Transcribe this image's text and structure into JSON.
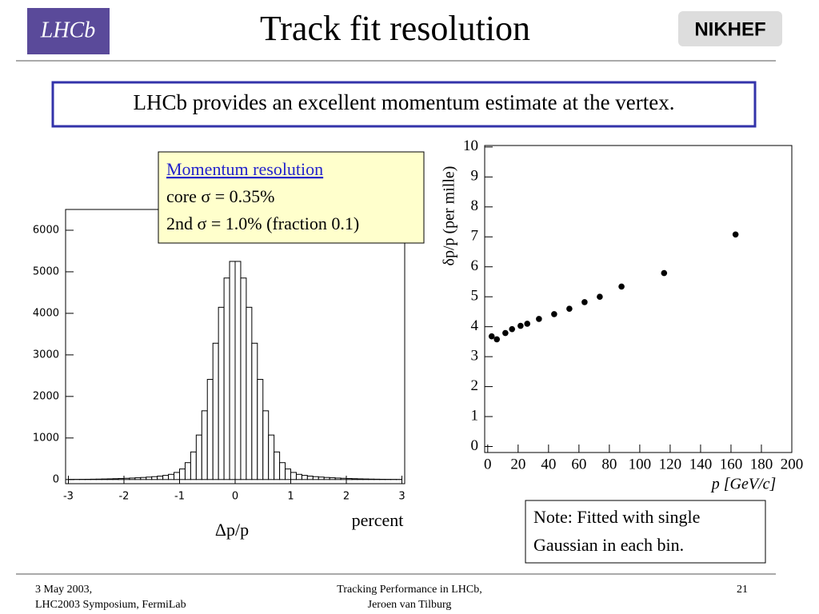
{
  "logos": {
    "left": "LHCb",
    "right": "NIKHEF"
  },
  "header": {
    "title": "Track fit resolution"
  },
  "callout": "LHCb provides an excellent momentum estimate at the vertex.",
  "annotation": {
    "heading": "Momentum resolution",
    "lines": [
      "core σ = 0.35%",
      "2nd σ = 1.0% (fraction 0.1)"
    ]
  },
  "note": [
    "Note: Fitted with single",
    "Gaussian in each bin."
  ],
  "footer": {
    "left": [
      "3 May 2003,",
      "LHC2003 Symposium, FermiLab"
    ],
    "center": [
      "Tracking Performance in LHCb,",
      "Jeroen van Tilburg"
    ],
    "page": "21"
  },
  "chart_data": [
    {
      "type": "histogram",
      "xlabel": "Δp/p",
      "xunit": "percent",
      "bins": [
        -3,
        -2.9,
        -2.8,
        -2.7,
        -2.6,
        -2.5,
        -2.4,
        -2.3,
        -2.2,
        -2.1,
        -2,
        -1.9,
        -1.8,
        -1.7,
        -1.6,
        -1.5,
        -1.4,
        -1.3,
        -1.2,
        -1.1,
        -1,
        -0.9,
        -0.8,
        -0.7,
        -0.6,
        -0.5,
        -0.4,
        -0.3,
        -0.2,
        -0.1,
        0,
        0.1,
        0.2,
        0.3,
        0.4,
        0.5,
        0.6,
        0.7,
        0.8,
        0.9,
        1,
        1.1,
        1.2,
        1.3,
        1.4,
        1.5,
        1.6,
        1.7,
        1.8,
        1.9,
        2,
        2.1,
        2.2,
        2.3,
        2.4,
        2.5,
        2.6,
        2.7,
        2.8,
        2.9,
        3
      ],
      "values": [
        3,
        4,
        5,
        6,
        8,
        10,
        13,
        16,
        20,
        24,
        30,
        36,
        43,
        50,
        59,
        69,
        82,
        100,
        125,
        171,
        254,
        406,
        664,
        1071,
        1654,
        2410,
        3281,
        4146,
        4850,
        5250,
        5250,
        4850,
        4146,
        3281,
        2410,
        1654,
        1071,
        664,
        406,
        254,
        171,
        125,
        100,
        82,
        69,
        59,
        50,
        43,
        36,
        30,
        24,
        20,
        16,
        13,
        10,
        8,
        6,
        5,
        4,
        3
      ],
      "color": "#000000",
      "xlim": [
        -3.05,
        3.05
      ],
      "ylim": [
        -100,
        6500
      ],
      "xticks": [
        -3,
        -2,
        -1,
        0,
        1,
        2,
        3
      ],
      "yticks": [
        0,
        1000,
        2000,
        3000,
        4000,
        5000,
        6000
      ]
    },
    {
      "type": "scatter",
      "xlabel": "p [GeV/c]",
      "ylabel": "δp/p (per mille)",
      "x": [
        2.6,
        6,
        11.6,
        16,
        21.6,
        26,
        33.7,
        43.7,
        53.7,
        63.7,
        73.7,
        88,
        116,
        163
      ],
      "values": [
        3.68,
        3.58,
        3.79,
        3.92,
        4.03,
        4.1,
        4.26,
        4.42,
        4.6,
        4.82,
        5.0,
        5.34,
        5.79,
        7.08
      ],
      "color": "#000000",
      "xlim": [
        -2,
        200
      ],
      "ylim": [
        -0.2,
        10.05
      ],
      "xticks": [
        0,
        20,
        40,
        60,
        80,
        100,
        120,
        140,
        160,
        180,
        200
      ],
      "yticks": [
        0,
        1,
        2,
        3,
        4,
        5,
        6,
        7,
        8,
        9,
        10
      ]
    }
  ]
}
